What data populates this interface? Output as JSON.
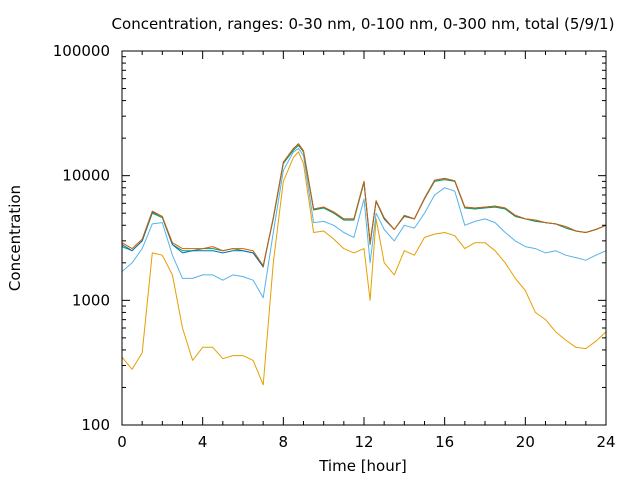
{
  "chart_data": {
    "type": "line",
    "title": "Concentration, ranges: 0-30 nm, 0-100 nm, 0-300 nm, total (5/9/1)",
    "xlabel": "Time [hour]",
    "ylabel": "Concentration",
    "xlim": [
      0,
      24
    ],
    "ylim": [
      100,
      100000
    ],
    "yscale": "log",
    "grid": false,
    "x_ticks": [
      "0",
      "4",
      "8",
      "12",
      "16",
      "20",
      "24"
    ],
    "y_ticks": [
      "100",
      "1000",
      "10000",
      "100000"
    ],
    "x": [
      0,
      0.5,
      1,
      1.5,
      2,
      2.5,
      3,
      3.5,
      4,
      4.5,
      5,
      5.5,
      6,
      6.5,
      7,
      7.5,
      8,
      8.5,
      8.75,
      9,
      9.5,
      10,
      10.5,
      11,
      11.5,
      12,
      12.3,
      12.6,
      13,
      13.5,
      14,
      14.5,
      15,
      15.5,
      16,
      16.5,
      17,
      17.5,
      18,
      18.5,
      19,
      19.5,
      20,
      20.5,
      21,
      21.5,
      22,
      22.5,
      23,
      23.5,
      24
    ],
    "series": [
      {
        "color": "#e69f00",
        "values": [
          350,
          280,
          380,
          2400,
          2300,
          1600,
          600,
          330,
          420,
          420,
          340,
          360,
          360,
          330,
          210,
          2000,
          9000,
          14000,
          15500,
          12500,
          3500,
          3600,
          3100,
          2600,
          2400,
          2600,
          1000,
          4500,
          2000,
          1600,
          2500,
          2300,
          3200,
          3400,
          3500,
          3300,
          2600,
          2900,
          2900,
          2500,
          2000,
          1500,
          1200,
          800,
          700,
          560,
          480,
          420,
          410,
          470,
          560
        ]
      },
      {
        "color": "#56b4e9",
        "values": [
          1700,
          2000,
          2600,
          4100,
          4200,
          2300,
          1500,
          1500,
          1600,
          1600,
          1450,
          1600,
          1550,
          1450,
          1050,
          3500,
          11000,
          15500,
          16500,
          14500,
          4200,
          4300,
          4000,
          3500,
          3200,
          6500,
          2000,
          5000,
          3700,
          3000,
          4000,
          3800,
          5000,
          7000,
          8000,
          7500,
          4000,
          4300,
          4500,
          4200,
          3500,
          3000,
          2700,
          2600,
          2400,
          2500,
          2300,
          2200,
          2100,
          2300,
          2500
        ]
      },
      {
        "color": "#009e73",
        "values": [
          2700,
          2500,
          3000,
          5000,
          4600,
          2800,
          2500,
          2500,
          2600,
          2600,
          2500,
          2600,
          2500,
          2400,
          1900,
          4500,
          12500,
          16000,
          17500,
          15500,
          5300,
          5500,
          5000,
          4400,
          4400,
          8800,
          2800,
          6200,
          4500,
          3700,
          4700,
          4500,
          6500,
          9000,
          9300,
          9000,
          5500,
          5400,
          5500,
          5600,
          5400,
          4700,
          4500,
          4300,
          4200,
          4100,
          3800,
          3600,
          3500,
          3700,
          4000
        ]
      },
      {
        "color": "#0072b2",
        "values": [
          2800,
          2500,
          3000,
          5100,
          4700,
          2800,
          2400,
          2500,
          2500,
          2500,
          2400,
          2500,
          2500,
          2400,
          1850,
          4600,
          12800,
          16500,
          18000,
          15800,
          5400,
          5600,
          5100,
          4500,
          4500,
          9000,
          2900,
          6300,
          4500,
          3700,
          4800,
          4500,
          6600,
          9200,
          9500,
          9100,
          5600,
          5500,
          5600,
          5700,
          5500,
          4800,
          4500,
          4400,
          4200,
          4100,
          3900,
          3600,
          3500,
          3700,
          4000
        ]
      },
      {
        "color": "#d55e00",
        "values": [
          2900,
          2600,
          3100,
          5200,
          4700,
          2900,
          2600,
          2600,
          2600,
          2700,
          2500,
          2600,
          2600,
          2500,
          1900,
          4600,
          12800,
          16500,
          18000,
          15800,
          5400,
          5600,
          5100,
          4500,
          4500,
          9000,
          2900,
          6300,
          4600,
          3700,
          4800,
          4500,
          6600,
          9200,
          9500,
          9100,
          5600,
          5500,
          5600,
          5700,
          5500,
          4800,
          4500,
          4400,
          4200,
          4100,
          3900,
          3600,
          3500,
          3700,
          4000
        ]
      }
    ]
  }
}
